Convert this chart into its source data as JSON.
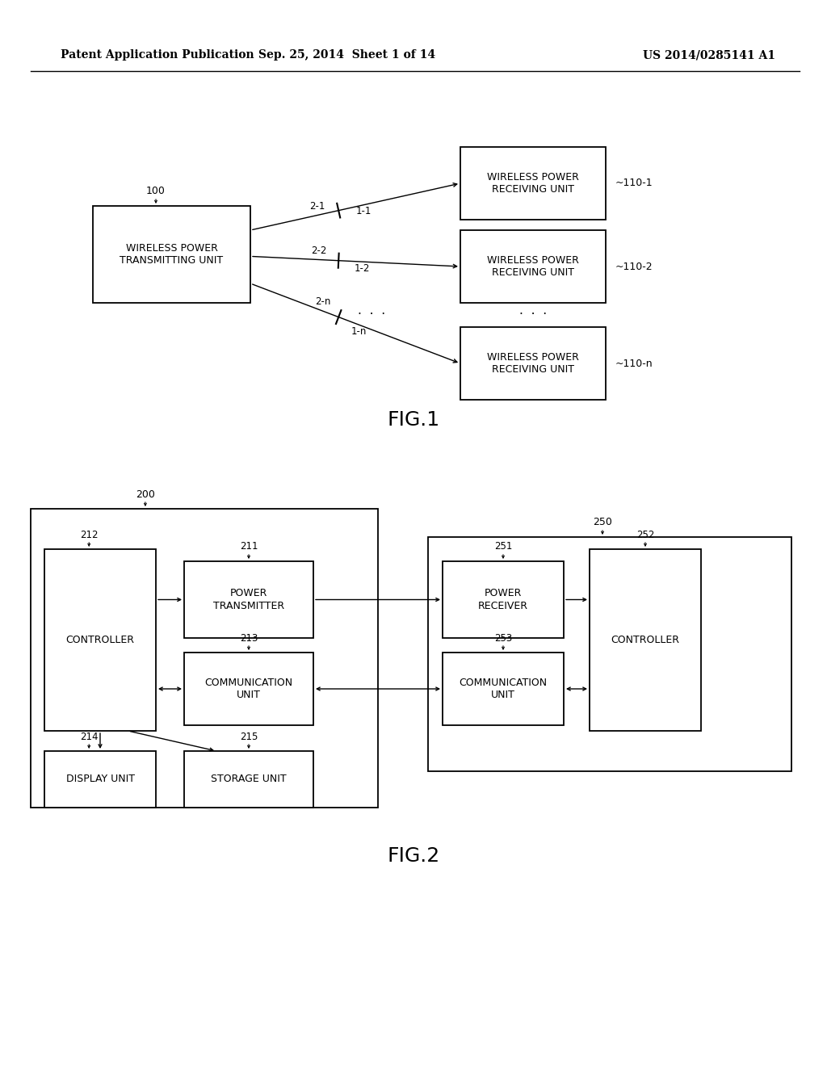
{
  "bg_color": "#ffffff",
  "header_left": "Patent Application Publication",
  "header_mid": "Sep. 25, 2014  Sheet 1 of 14",
  "header_right": "US 2014/0285141 A1",
  "fig1_label": "FIG.1",
  "fig2_label": "FIG.2"
}
